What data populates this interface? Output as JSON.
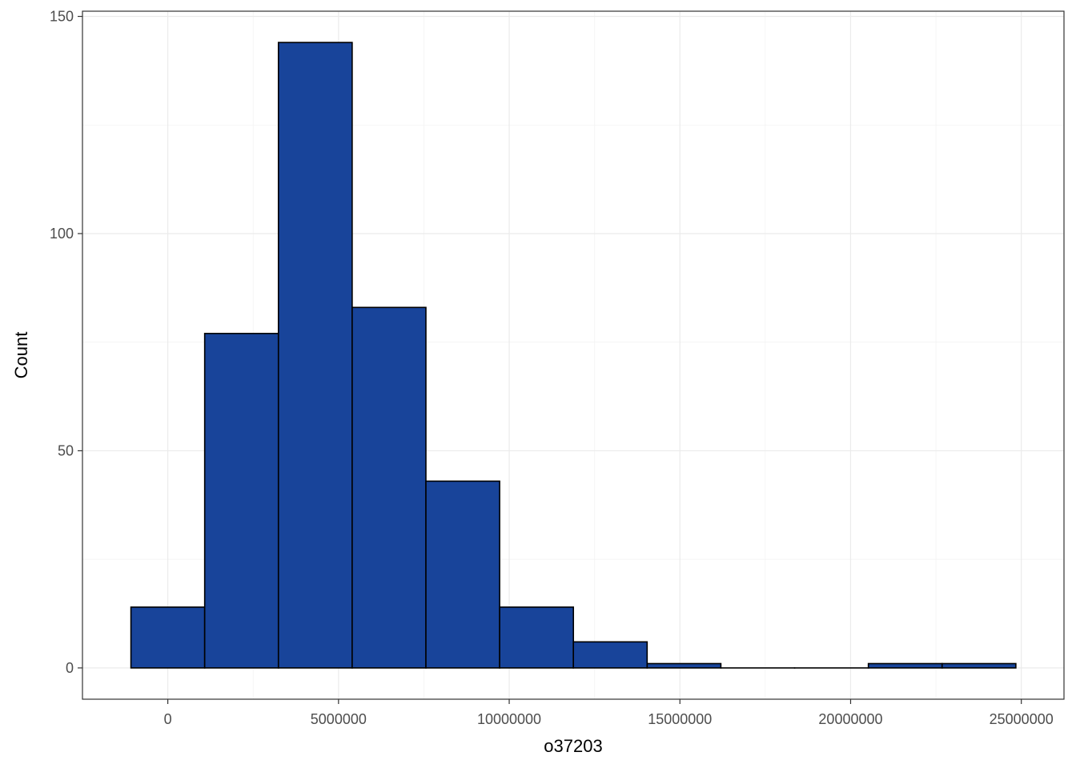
{
  "chart_data": {
    "type": "bar",
    "subtype": "histogram",
    "title": "",
    "xlabel": "o37203",
    "ylabel": "Count",
    "xlim": [
      -2500000,
      26250000
    ],
    "ylim": [
      -7.2,
      151.2
    ],
    "x_ticks": [
      0,
      5000000,
      10000000,
      15000000,
      20000000,
      25000000
    ],
    "x_tick_labels": [
      "0",
      "5000000",
      "10000000",
      "15000000",
      "20000000",
      "25000000"
    ],
    "y_ticks": [
      0,
      50,
      100,
      150
    ],
    "y_tick_labels": [
      "0",
      "50",
      "100",
      "150"
    ],
    "bin_width": 2160000,
    "bins": [
      {
        "x_start": -1080000,
        "x_end": 1080000,
        "count": 14
      },
      {
        "x_start": 1080000,
        "x_end": 3240000,
        "count": 77
      },
      {
        "x_start": 3240000,
        "x_end": 5400000,
        "count": 144
      },
      {
        "x_start": 5400000,
        "x_end": 7560000,
        "count": 83
      },
      {
        "x_start": 7560000,
        "x_end": 9720000,
        "count": 43
      },
      {
        "x_start": 9720000,
        "x_end": 11880000,
        "count": 14
      },
      {
        "x_start": 11880000,
        "x_end": 14040000,
        "count": 6
      },
      {
        "x_start": 14040000,
        "x_end": 16200000,
        "count": 1
      },
      {
        "x_start": 16200000,
        "x_end": 18360000,
        "count": 0
      },
      {
        "x_start": 18360000,
        "x_end": 20520000,
        "count": 0
      },
      {
        "x_start": 20520000,
        "x_end": 22680000,
        "count": 1
      },
      {
        "x_start": 22680000,
        "x_end": 24840000,
        "count": 1
      }
    ],
    "bar_fill": "#18449A",
    "bar_outline": "#000000",
    "grid": true,
    "legend": "none"
  }
}
